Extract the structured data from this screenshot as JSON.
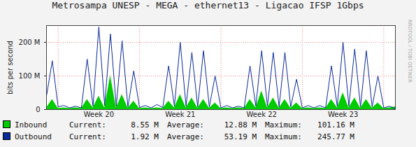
{
  "chart_data": {
    "type": "line",
    "title": "Metrosampa UNESP - MEGA - ethernet13 - Ligacao IFSP 1Gbps",
    "y_label": "bits per second",
    "credit": "RRDTOOL / TOBI OETIKER",
    "x": [
      0,
      0.5,
      1,
      1.5,
      2,
      2.5,
      3,
      3.5,
      4,
      4.5,
      5,
      5.5,
      6,
      6.5,
      7,
      7.5,
      8,
      8.5,
      9,
      9.5,
      10,
      10.5,
      11,
      11.5,
      12,
      12.5,
      13,
      13.5,
      14,
      14.5,
      15,
      15.5,
      16,
      16.5,
      17,
      17.5,
      18,
      18.5,
      19,
      19.5,
      20,
      20.5,
      21,
      21.5,
      22,
      22.5,
      23,
      23.5,
      24,
      24.5,
      25,
      25.5,
      26,
      26.5,
      27,
      27.5,
      28,
      28.5,
      29,
      29.5,
      30
    ],
    "xlim": [
      0,
      30
    ],
    "xticks": [
      {
        "value": 4.5,
        "label": "Week 20"
      },
      {
        "value": 11.5,
        "label": "Week 21"
      },
      {
        "value": 18.5,
        "label": "Week 22"
      },
      {
        "value": 25.5,
        "label": "Week 23"
      }
    ],
    "ylim": [
      0,
      250
    ],
    "yticks": [
      0,
      {
        "value": 100,
        "label": "100 M"
      },
      {
        "value": 200,
        "label": "200 M"
      }
    ],
    "grid": true,
    "stat_names": [
      "Current:",
      "Average:",
      "Maximum:"
    ],
    "series": [
      {
        "name": "Inbound",
        "type": "area",
        "color": "#00cc00",
        "values": [
          5,
          30,
          3,
          5,
          3,
          5,
          3,
          30,
          5,
          40,
          5,
          101.16,
          5,
          45,
          4,
          25,
          3,
          5,
          3,
          5,
          3,
          25,
          5,
          45,
          5,
          35,
          4,
          30,
          4,
          20,
          3,
          5,
          3,
          5,
          3,
          30,
          5,
          55,
          5,
          35,
          4,
          30,
          4,
          20,
          3,
          5,
          3,
          5,
          3,
          30,
          5,
          50,
          5,
          35,
          4,
          30,
          4,
          20,
          3,
          5,
          8.55
        ],
        "stats": [
          8.55,
          12.88,
          101.16
        ],
        "stat_labels": [
          "8.55 M",
          "12.88 M",
          "101.16 M"
        ]
      },
      {
        "name": "Outbound",
        "type": "line",
        "color": "#0a2a9a",
        "values": [
          40,
          145,
          8,
          12,
          5,
          10,
          5,
          150,
          10,
          245.77,
          12,
          225,
          10,
          205,
          8,
          115,
          6,
          12,
          5,
          15,
          6,
          130,
          10,
          200,
          10,
          170,
          8,
          175,
          8,
          100,
          5,
          12,
          5,
          10,
          5,
          130,
          10,
          175,
          10,
          170,
          8,
          170,
          8,
          90,
          5,
          12,
          5,
          12,
          5,
          130,
          10,
          200,
          10,
          180,
          8,
          175,
          8,
          100,
          5,
          10,
          1.92
        ],
        "stats": [
          1.92,
          53.19,
          245.77
        ],
        "stat_labels": [
          "1.92 M",
          "53.19 M",
          "245.77 M"
        ]
      }
    ]
  }
}
